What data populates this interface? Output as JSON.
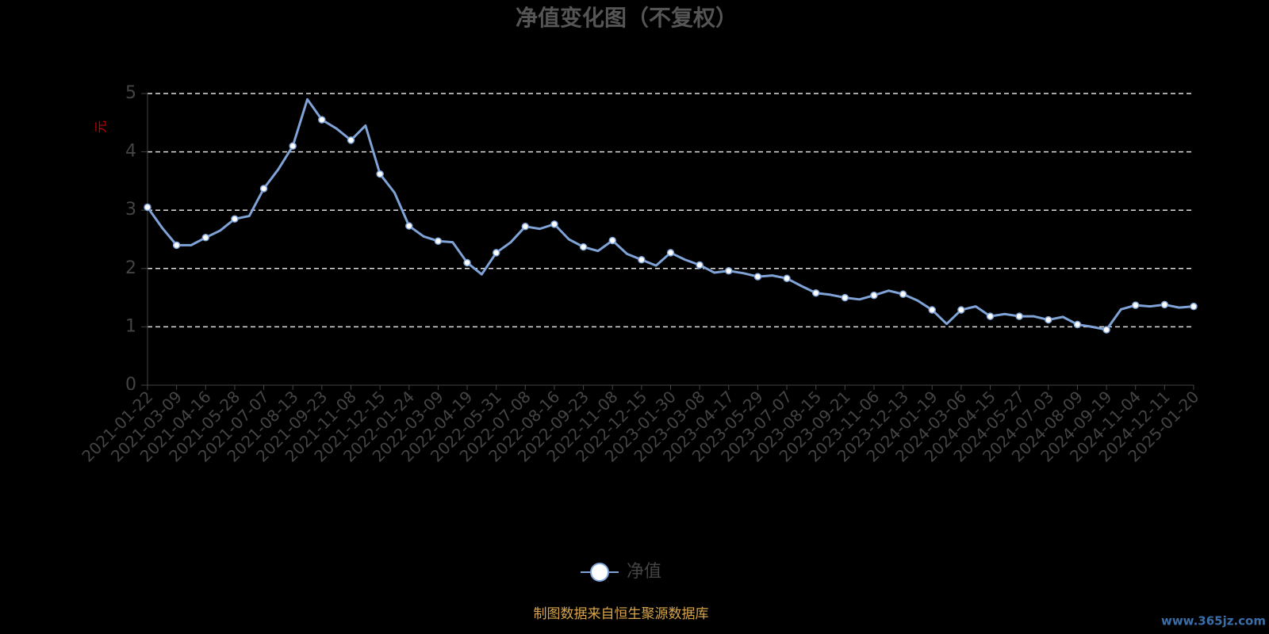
{
  "chart_data": {
    "type": "line",
    "title": "净值变化图（不复权）",
    "y_axis_label": "元",
    "categories": [
      "2021-01-22",
      null,
      "2021-03-09",
      null,
      "2021-04-16",
      null,
      "2021-05-28",
      null,
      "2021-07-07",
      null,
      "2021-08-13",
      null,
      "2021-09-23",
      null,
      "2021-11-08",
      null,
      "2021-12-15",
      null,
      "2022-01-24",
      null,
      "2022-03-09",
      null,
      "2022-04-19",
      null,
      "2022-05-31",
      null,
      "2022-07-08",
      null,
      "2022-08-16",
      null,
      "2022-09-23",
      null,
      "2022-11-08",
      null,
      "2022-12-15",
      null,
      "2023-01-30",
      null,
      "2023-03-08",
      null,
      "2023-04-17",
      null,
      "2023-05-29",
      null,
      "2023-07-07",
      null,
      "2023-08-15",
      null,
      "2023-09-21",
      null,
      "2023-11-06",
      null,
      "2023-12-13",
      null,
      "2024-01-19",
      null,
      "2024-03-06",
      null,
      "2024-04-15",
      null,
      "2024-05-27",
      null,
      "2024-07-03",
      null,
      "2024-08-09",
      null,
      "2024-09-19",
      null,
      "2024-11-04",
      null,
      "2024-12-11",
      null,
      "2025-01-20"
    ],
    "series": [
      {
        "name": "净值",
        "color": "#7fa3d6",
        "values": [
          3.05,
          2.7,
          2.4,
          2.4,
          2.53,
          2.65,
          2.85,
          2.9,
          3.37,
          3.7,
          4.1,
          4.9,
          4.55,
          4.4,
          4.2,
          4.45,
          3.62,
          3.3,
          2.73,
          2.55,
          2.47,
          2.45,
          2.1,
          1.9,
          2.27,
          2.45,
          2.72,
          2.68,
          2.76,
          2.5,
          2.37,
          2.3,
          2.48,
          2.25,
          2.15,
          2.05,
          2.27,
          2.15,
          2.06,
          1.93,
          1.96,
          1.92,
          1.86,
          1.88,
          1.83,
          1.7,
          1.58,
          1.55,
          1.5,
          1.47,
          1.54,
          1.62,
          1.56,
          1.45,
          1.29,
          1.05,
          1.29,
          1.35,
          1.18,
          1.22,
          1.18,
          1.18,
          1.12,
          1.17,
          1.04,
          1.0,
          0.95,
          1.3,
          1.37,
          1.35,
          1.38,
          1.33,
          1.35
        ]
      }
    ],
    "ylim": [
      0,
      5
    ],
    "yticks": [
      0,
      1,
      2,
      3,
      4,
      5
    ],
    "grid": true,
    "legend": "bottom",
    "source": "制图数据来自恒生聚源数据库",
    "watermark": "www.365jz.com"
  }
}
